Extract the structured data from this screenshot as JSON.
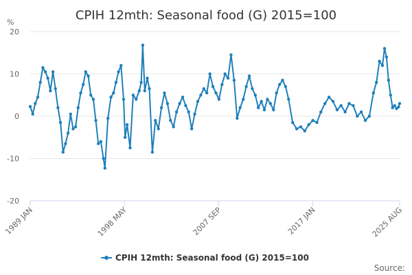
{
  "chart_data": {
    "type": "line",
    "title": "CPIH 12mth: Seasonal food (G) 2015=100",
    "ylabel": "%",
    "ylim": [
      -20,
      20
    ],
    "yticks": [
      "20",
      "10",
      "0",
      "-10",
      "-20"
    ],
    "xticks": [
      "1989 JAN",
      "1998 MAY",
      "2007 SEP",
      "2017 JAN",
      "2025 AUG"
    ],
    "x_range": [
      "1989 JAN",
      "2025 AUG"
    ],
    "legend": "CPIH 12mth: Seasonal food (G) 2015=100",
    "legend_position": "bottom-center",
    "source_label": "Source:",
    "line_color": "#1f7fba",
    "series": [
      {
        "name": "CPIH 12mth: Seasonal food (G) 2015=100",
        "points": [
          [
            1989.0,
            2.3
          ],
          [
            1989.25,
            0.5
          ],
          [
            1989.5,
            3.0
          ],
          [
            1989.75,
            4.5
          ],
          [
            1990.0,
            8.0
          ],
          [
            1990.25,
            11.5
          ],
          [
            1990.5,
            10.5
          ],
          [
            1990.75,
            9.0
          ],
          [
            1991.0,
            6.0
          ],
          [
            1991.25,
            10.5
          ],
          [
            1991.5,
            6.5
          ],
          [
            1991.75,
            2.0
          ],
          [
            1992.0,
            -1.5
          ],
          [
            1992.25,
            -8.5
          ],
          [
            1992.5,
            -6.5
          ],
          [
            1992.75,
            -4.0
          ],
          [
            1993.0,
            0.5
          ],
          [
            1993.25,
            -3.0
          ],
          [
            1993.5,
            -2.5
          ],
          [
            1993.75,
            2.0
          ],
          [
            1994.0,
            5.5
          ],
          [
            1994.25,
            7.5
          ],
          [
            1994.5,
            10.5
          ],
          [
            1994.75,
            9.5
          ],
          [
            1995.0,
            5.0
          ],
          [
            1995.25,
            4.0
          ],
          [
            1995.5,
            -1.0
          ],
          [
            1995.75,
            -6.5
          ],
          [
            1996.0,
            -6.0
          ],
          [
            1996.25,
            -10.0
          ],
          [
            1996.4,
            -12.3
          ],
          [
            1996.7,
            -0.5
          ],
          [
            1997.0,
            4.5
          ],
          [
            1997.25,
            5.5
          ],
          [
            1997.5,
            8.0
          ],
          [
            1997.75,
            10.5
          ],
          [
            1998.0,
            12.0
          ],
          [
            1998.25,
            4.0
          ],
          [
            1998.4,
            -5.0
          ],
          [
            1998.6,
            -2.0
          ],
          [
            1998.9,
            -7.5
          ],
          [
            1999.2,
            5.0
          ],
          [
            1999.5,
            4.0
          ],
          [
            1999.8,
            6.0
          ],
          [
            2000.0,
            8.0
          ],
          [
            2000.15,
            16.8
          ],
          [
            2000.35,
            6.0
          ],
          [
            2000.6,
            9.0
          ],
          [
            2000.8,
            6.5
          ],
          [
            2001.1,
            -8.5
          ],
          [
            2001.4,
            -1.0
          ],
          [
            2001.7,
            -3.0
          ],
          [
            2002.0,
            2.0
          ],
          [
            2002.3,
            5.5
          ],
          [
            2002.6,
            3.0
          ],
          [
            2002.9,
            -1.0
          ],
          [
            2003.2,
            -2.5
          ],
          [
            2003.5,
            1.0
          ],
          [
            2003.8,
            3.0
          ],
          [
            2004.1,
            4.5
          ],
          [
            2004.4,
            2.5
          ],
          [
            2004.7,
            1.0
          ],
          [
            2005.0,
            -3.0
          ],
          [
            2005.3,
            0.5
          ],
          [
            2005.6,
            3.5
          ],
          [
            2005.9,
            5.0
          ],
          [
            2006.2,
            6.5
          ],
          [
            2006.5,
            5.5
          ],
          [
            2006.8,
            10.0
          ],
          [
            2007.1,
            7.0
          ],
          [
            2007.4,
            5.5
          ],
          [
            2007.7,
            4.0
          ],
          [
            2008.0,
            7.5
          ],
          [
            2008.3,
            10.0
          ],
          [
            2008.6,
            9.0
          ],
          [
            2008.9,
            14.5
          ],
          [
            2009.2,
            8.5
          ],
          [
            2009.5,
            -0.5
          ],
          [
            2009.8,
            2.0
          ],
          [
            2010.1,
            4.0
          ],
          [
            2010.4,
            7.0
          ],
          [
            2010.7,
            9.5
          ],
          [
            2011.0,
            6.5
          ],
          [
            2011.3,
            5.0
          ],
          [
            2011.6,
            2.0
          ],
          [
            2011.9,
            3.5
          ],
          [
            2012.2,
            1.5
          ],
          [
            2012.5,
            4.0
          ],
          [
            2012.8,
            3.0
          ],
          [
            2013.1,
            1.5
          ],
          [
            2013.4,
            5.5
          ],
          [
            2013.7,
            7.5
          ],
          [
            2014.0,
            8.5
          ],
          [
            2014.3,
            7.0
          ],
          [
            2014.6,
            4.0
          ],
          [
            2015.0,
            -1.5
          ],
          [
            2015.4,
            -3.0
          ],
          [
            2015.8,
            -2.5
          ],
          [
            2016.2,
            -3.5
          ],
          [
            2016.6,
            -2.0
          ],
          [
            2017.0,
            -1.0
          ],
          [
            2017.4,
            -1.5
          ],
          [
            2017.8,
            1.0
          ],
          [
            2018.2,
            3.0
          ],
          [
            2018.6,
            4.5
          ],
          [
            2019.0,
            3.5
          ],
          [
            2019.4,
            1.5
          ],
          [
            2019.8,
            2.5
          ],
          [
            2020.2,
            1.0
          ],
          [
            2020.6,
            3.0
          ],
          [
            2021.0,
            2.5
          ],
          [
            2021.4,
            0.0
          ],
          [
            2021.8,
            1.0
          ],
          [
            2022.2,
            -1.0
          ],
          [
            2022.6,
            0.0
          ],
          [
            2023.0,
            5.5
          ],
          [
            2023.3,
            8.0
          ],
          [
            2023.6,
            13.0
          ],
          [
            2023.9,
            12.0
          ],
          [
            2024.1,
            16.0
          ],
          [
            2024.3,
            14.0
          ],
          [
            2024.5,
            8.5
          ],
          [
            2024.7,
            5.0
          ],
          [
            2024.9,
            2.0
          ],
          [
            2025.1,
            2.5
          ],
          [
            2025.3,
            1.8
          ],
          [
            2025.5,
            2.2
          ],
          [
            2025.6,
            3.0
          ]
        ]
      }
    ]
  }
}
